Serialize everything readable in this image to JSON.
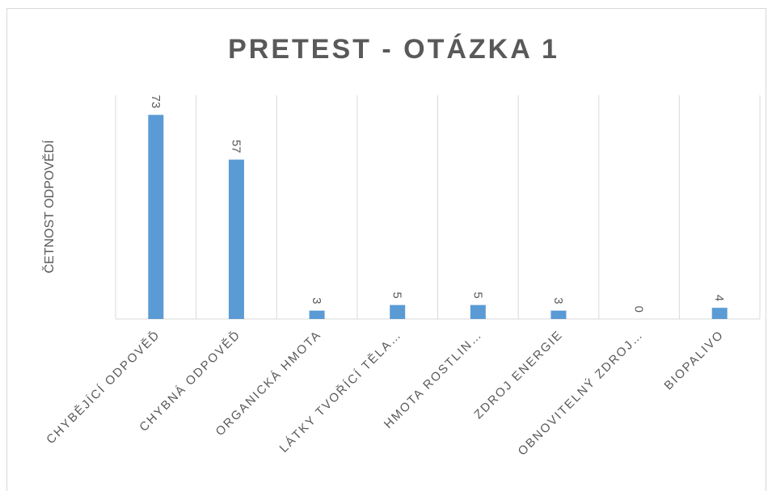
{
  "chart_data": {
    "type": "bar",
    "title": "PRETEST  - OTÁZKA  1",
    "y_label": "ČETNOST ODPOVĚDÍ",
    "categories": [
      "CHYBĚJÍCÍ ODPOVĚĎ",
      "CHYBNÁ ODPOVĚĎ",
      "ORGANICKÁ HMOTA",
      "LÁTKY TVOŘÍCÍ TĚLA…",
      "HMOTA ROSTLIN…",
      "ZDROJ ENERGIE",
      "OBNOVITELNÝ ZDROJ…",
      "BIOPALIVO"
    ],
    "values": [
      73,
      57,
      3,
      5,
      5,
      3,
      0,
      4
    ],
    "color": "#5b9bd5",
    "ylim": [
      0,
      80
    ],
    "grid": true
  }
}
